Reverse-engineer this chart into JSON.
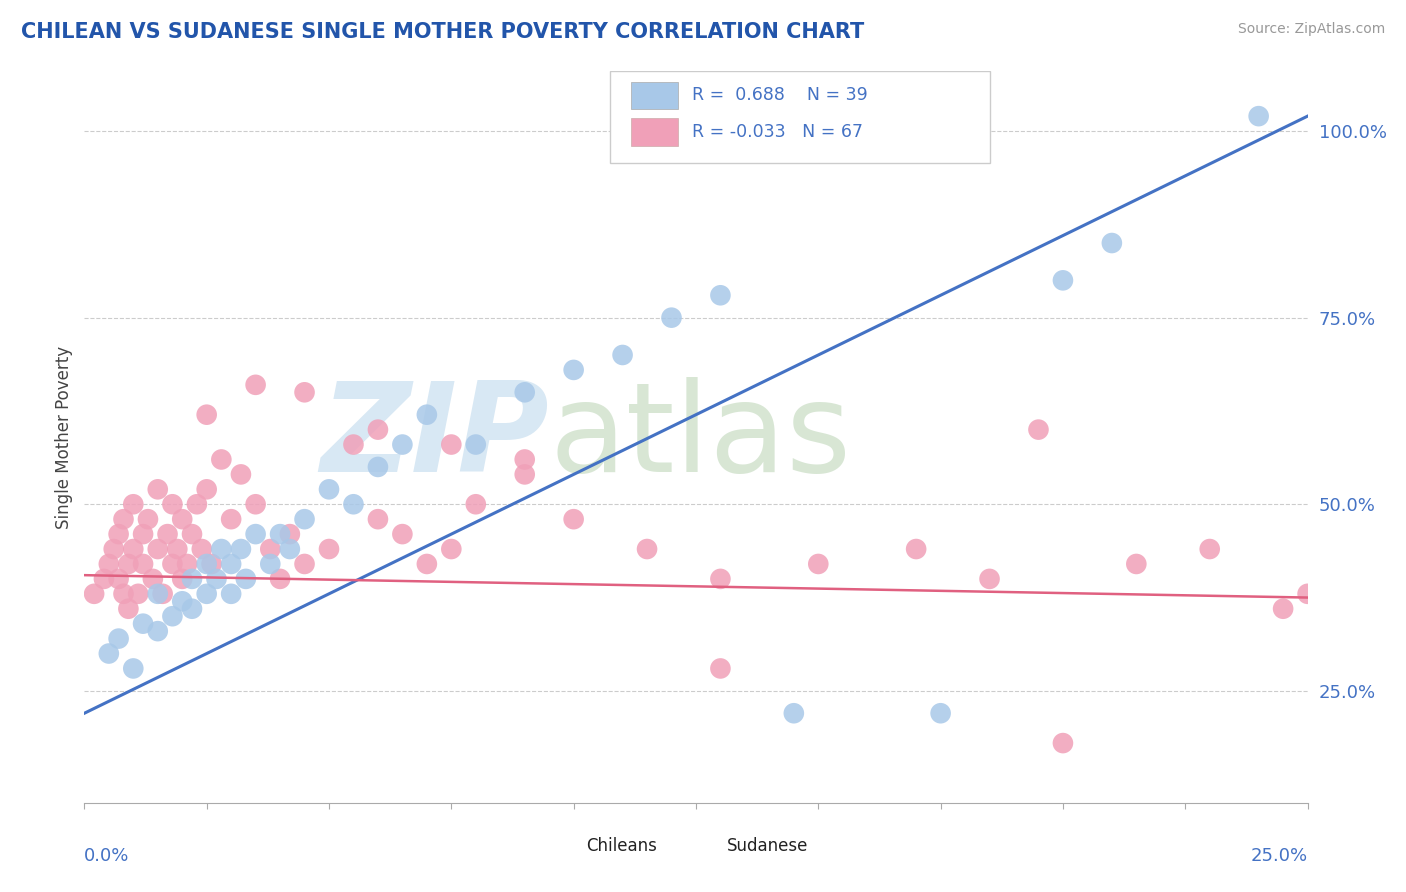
{
  "title": "CHILEAN VS SUDANESE SINGLE MOTHER POVERTY CORRELATION CHART",
  "source": "Source: ZipAtlas.com",
  "ylabel": "Single Mother Poverty",
  "ytick_labels": [
    "25.0%",
    "50.0%",
    "75.0%",
    "100.0%"
  ],
  "ytick_values": [
    0.25,
    0.5,
    0.75,
    1.0
  ],
  "xlim": [
    0.0,
    0.25
  ],
  "ylim": [
    0.1,
    1.08
  ],
  "R_chilean": 0.688,
  "N_chilean": 39,
  "R_sudanese": -0.033,
  "N_sudanese": 67,
  "chilean_color": "#a8c8e8",
  "sudanese_color": "#f0a0b8",
  "chilean_line_color": "#4472c4",
  "sudanese_line_color": "#e06080",
  "background_color": "#ffffff",
  "chilean_line": [
    0.0,
    0.22,
    0.25,
    1.02
  ],
  "sudanese_line": [
    0.0,
    0.405,
    0.25,
    0.375
  ],
  "chilean_x": [
    0.005,
    0.007,
    0.01,
    0.012,
    0.015,
    0.015,
    0.018,
    0.02,
    0.022,
    0.022,
    0.025,
    0.025,
    0.027,
    0.028,
    0.03,
    0.03,
    0.032,
    0.033,
    0.035,
    0.038,
    0.04,
    0.042,
    0.045,
    0.05,
    0.055,
    0.06,
    0.065,
    0.07,
    0.08,
    0.09,
    0.1,
    0.11,
    0.12,
    0.13,
    0.145,
    0.175,
    0.2,
    0.21,
    0.24
  ],
  "chilean_y": [
    0.3,
    0.32,
    0.28,
    0.34,
    0.33,
    0.38,
    0.35,
    0.37,
    0.4,
    0.36,
    0.38,
    0.42,
    0.4,
    0.44,
    0.42,
    0.38,
    0.44,
    0.4,
    0.46,
    0.42,
    0.46,
    0.44,
    0.48,
    0.52,
    0.5,
    0.55,
    0.58,
    0.62,
    0.58,
    0.65,
    0.68,
    0.7,
    0.75,
    0.78,
    0.22,
    0.22,
    0.8,
    0.85,
    1.02
  ],
  "sudanese_x": [
    0.002,
    0.004,
    0.005,
    0.006,
    0.007,
    0.007,
    0.008,
    0.008,
    0.009,
    0.009,
    0.01,
    0.01,
    0.011,
    0.012,
    0.012,
    0.013,
    0.014,
    0.015,
    0.015,
    0.016,
    0.017,
    0.018,
    0.018,
    0.019,
    0.02,
    0.02,
    0.021,
    0.022,
    0.023,
    0.024,
    0.025,
    0.026,
    0.028,
    0.03,
    0.032,
    0.035,
    0.038,
    0.04,
    0.042,
    0.045,
    0.05,
    0.055,
    0.06,
    0.065,
    0.07,
    0.075,
    0.08,
    0.09,
    0.1,
    0.115,
    0.13,
    0.15,
    0.17,
    0.185,
    0.2,
    0.215,
    0.23,
    0.245,
    0.25,
    0.195,
    0.025,
    0.035,
    0.045,
    0.06,
    0.075,
    0.09,
    0.13
  ],
  "sudanese_y": [
    0.38,
    0.4,
    0.42,
    0.44,
    0.46,
    0.4,
    0.48,
    0.38,
    0.42,
    0.36,
    0.44,
    0.5,
    0.38,
    0.42,
    0.46,
    0.48,
    0.4,
    0.44,
    0.52,
    0.38,
    0.46,
    0.5,
    0.42,
    0.44,
    0.48,
    0.4,
    0.42,
    0.46,
    0.5,
    0.44,
    0.52,
    0.42,
    0.56,
    0.48,
    0.54,
    0.5,
    0.44,
    0.4,
    0.46,
    0.42,
    0.44,
    0.58,
    0.48,
    0.46,
    0.42,
    0.44,
    0.5,
    0.54,
    0.48,
    0.44,
    0.4,
    0.42,
    0.44,
    0.4,
    0.18,
    0.42,
    0.44,
    0.36,
    0.38,
    0.6,
    0.62,
    0.66,
    0.65,
    0.6,
    0.58,
    0.56,
    0.28
  ]
}
